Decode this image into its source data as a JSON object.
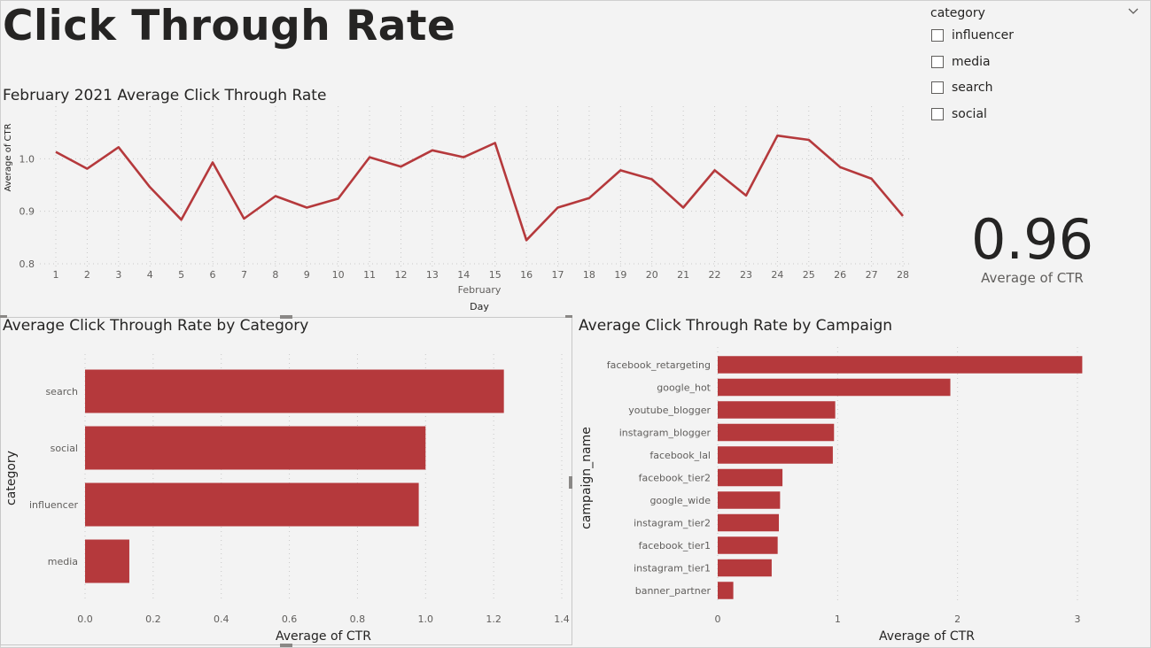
{
  "report": {
    "title": "Click Through Rate"
  },
  "slicer": {
    "header": "category",
    "items": [
      {
        "label": "influencer"
      },
      {
        "label": "media"
      },
      {
        "label": "search"
      },
      {
        "label": "social"
      }
    ]
  },
  "card": {
    "value": "0.96",
    "label": "Average of CTR"
  },
  "line_chart": {
    "title": "February 2021 Average Click Through Rate",
    "ylabel": "Average of CTR",
    "xlabel_group": "February",
    "xlabel": "Day"
  },
  "category_chart": {
    "title": "Average Click Through Rate by Category",
    "ylabel": "category",
    "xlabel": "Average of CTR"
  },
  "campaign_chart": {
    "title": "Average Click Through Rate by Campaign",
    "ylabel": "campaign_name",
    "xlabel": "Average of CTR"
  },
  "colors": {
    "bar": "#b5393c",
    "line": "#b5393c",
    "grid": "#c8c8c8",
    "tick": "#605e5c"
  },
  "chart_data": [
    {
      "type": "line",
      "title": "February 2021 Average Click Through Rate",
      "xlabel": "Day",
      "ylabel": "Average of CTR",
      "x": [
        1,
        2,
        3,
        4,
        5,
        6,
        7,
        8,
        9,
        10,
        11,
        12,
        13,
        14,
        15,
        16,
        17,
        18,
        19,
        20,
        21,
        22,
        23,
        24,
        25,
        26,
        27,
        28
      ],
      "y": [
        1.013,
        0.981,
        1.022,
        0.946,
        0.884,
        0.993,
        0.886,
        0.929,
        0.907,
        0.924,
        1.003,
        0.985,
        1.016,
        1.003,
        1.03,
        0.845,
        0.907,
        0.925,
        0.978,
        0.961,
        0.907,
        0.978,
        0.93,
        1.044,
        1.036,
        0.984,
        0.962,
        0.891
      ],
      "yticks": [
        0.8,
        0.9,
        1.0
      ],
      "ytick_labels": [
        "0.8",
        "0.9",
        "1.0"
      ],
      "ylim": [
        0.8,
        1.1
      ],
      "grid": true
    },
    {
      "type": "bar",
      "orientation": "horizontal",
      "title": "Average Click Through Rate by Category",
      "xlabel": "Average of CTR",
      "ylabel": "category",
      "categories": [
        "search",
        "social",
        "influencer",
        "media"
      ],
      "values": [
        1.23,
        1.0,
        0.98,
        0.13
      ],
      "xticks": [
        "0.0",
        "0.2",
        "0.4",
        "0.6",
        "0.8",
        "1.0",
        "1.2",
        "1.4"
      ],
      "xlim": [
        0,
        1.4
      ],
      "grid": true
    },
    {
      "type": "bar",
      "orientation": "horizontal",
      "title": "Average Click Through Rate by Campaign",
      "xlabel": "Average of CTR",
      "ylabel": "campaign_name",
      "categories": [
        "facebook_retargeting",
        "google_hot",
        "youtube_blogger",
        "instagram_blogger",
        "facebook_lal",
        "facebook_tier2",
        "google_wide",
        "instagram_tier2",
        "facebook_tier1",
        "instagram_tier1",
        "banner_partner"
      ],
      "values": [
        3.04,
        1.94,
        0.98,
        0.97,
        0.96,
        0.54,
        0.52,
        0.51,
        0.5,
        0.45,
        0.13
      ],
      "xticks": [
        "0",
        "1",
        "2",
        "3"
      ],
      "xlim": [
        0,
        3
      ],
      "grid": true
    }
  ]
}
